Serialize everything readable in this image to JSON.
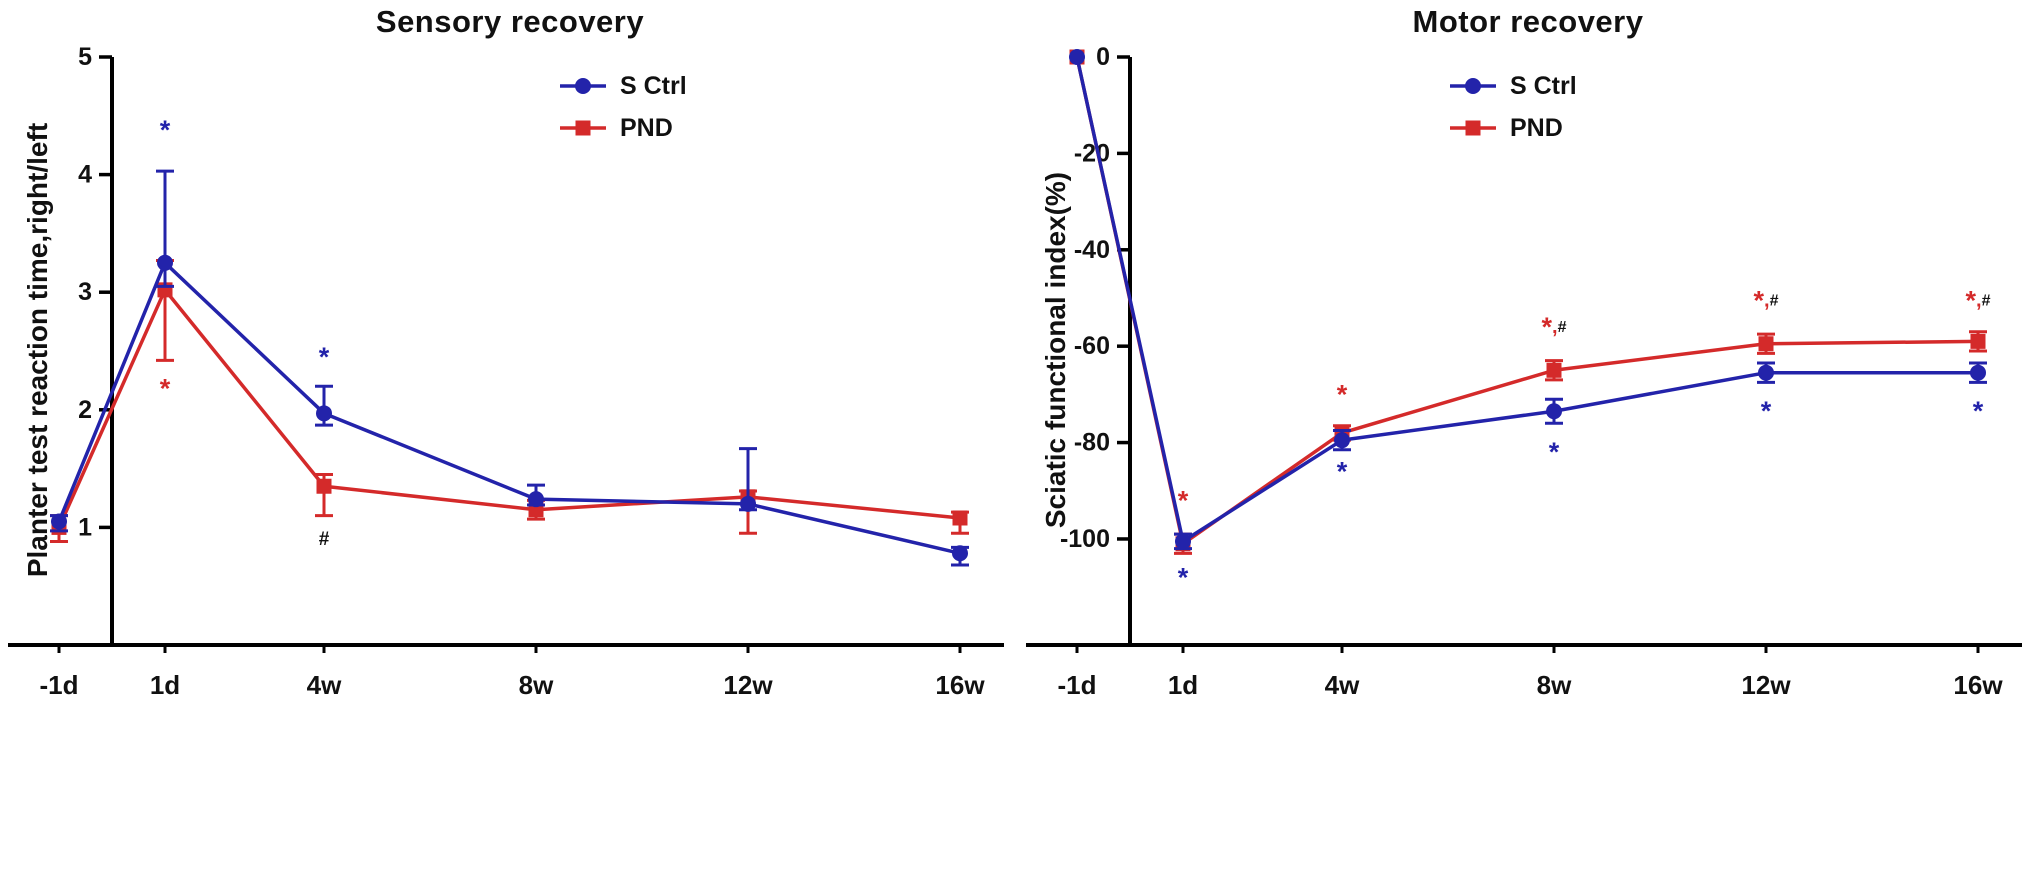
{
  "figure": {
    "background": "#ffffff"
  },
  "colors": {
    "blue": "#2323aa",
    "red": "#d42a2a",
    "black": "#111111",
    "axis": "#000000"
  },
  "chart_data": [
    {
      "type": "line",
      "title": "Sensory recovery",
      "ylabel": "Planter test reaction time,right/left",
      "xlabel": "",
      "x": [
        -1,
        1,
        4,
        8,
        12,
        16
      ],
      "xtick_labels": [
        "-1d",
        "1d",
        "4w",
        "8w",
        "12w",
        "16w"
      ],
      "yticks": [
        1,
        2,
        3,
        4,
        5
      ],
      "ylim": [
        0,
        5
      ],
      "ymap": [
        0,
        5
      ],
      "grid": false,
      "legend_position": "top-center",
      "legend_pos": {
        "x": 560,
        "y": 86
      },
      "series": [
        {
          "name": "S Ctrl",
          "marker": "circle",
          "color": "blue",
          "values": [
            1.05,
            3.25,
            1.97,
            1.24,
            1.2,
            0.78
          ],
          "err_up": [
            0.05,
            0.78,
            0.23,
            0.12,
            0.47,
            0.05
          ],
          "err_down": [
            0.08,
            0.2,
            0.1,
            0.05,
            0.05,
            0.1
          ]
        },
        {
          "name": "PND",
          "marker": "square",
          "color": "red",
          "values": [
            1.0,
            3.02,
            1.35,
            1.15,
            1.26,
            1.08
          ],
          "err_up": [
            0.1,
            0.25,
            0.1,
            0.08,
            0.05,
            0.05
          ],
          "err_down": [
            0.12,
            0.6,
            0.25,
            0.08,
            0.31,
            0.13
          ]
        }
      ],
      "annotations": [
        {
          "x": 1,
          "y": 4.38,
          "size": 27,
          "parts": [
            {
              "text": "*",
              "color": "blue"
            }
          ]
        },
        {
          "x": 1,
          "y": 2.18,
          "size": 27,
          "parts": [
            {
              "text": "*",
              "color": "red"
            }
          ]
        },
        {
          "x": 4,
          "y": 2.45,
          "size": 27,
          "parts": [
            {
              "text": "*",
              "color": "blue"
            }
          ]
        },
        {
          "x": 4,
          "y": 0.9,
          "size": 19,
          "parts": [
            {
              "text": "#",
              "color": "black"
            }
          ]
        }
      ]
    },
    {
      "type": "line",
      "title": "Motor recovery",
      "ylabel": "Sciatic functional index(%)",
      "xlabel": "",
      "x": [
        -1,
        1,
        4,
        8,
        12,
        16
      ],
      "xtick_labels": [
        "-1d",
        "1d",
        "4w",
        "8w",
        "12w",
        "16w"
      ],
      "yticks": [
        0,
        -20,
        -40,
        -60,
        -80,
        -100
      ],
      "ylim": [
        -100,
        0
      ],
      "ymap": [
        -122,
        0
      ],
      "grid": false,
      "legend_position": "top-center",
      "legend_pos": {
        "x": 432,
        "y": 86
      },
      "series": [
        {
          "name": "S Ctrl",
          "marker": "circle",
          "color": "blue",
          "values": [
            0,
            -100.5,
            -79.5,
            -73.5,
            -65.5,
            -65.5
          ],
          "err_up": [
            0,
            1.5,
            2,
            2.5,
            2,
            2
          ],
          "err_down": [
            0,
            1.5,
            2,
            2.5,
            2,
            2
          ]
        },
        {
          "name": "PND",
          "marker": "square",
          "color": "red",
          "values": [
            0,
            -101,
            -78,
            -65,
            -59.5,
            -59
          ],
          "err_up": [
            0,
            2,
            1.5,
            2,
            2,
            2
          ],
          "err_down": [
            0,
            2,
            1.5,
            2,
            2,
            2
          ]
        }
      ],
      "annotations": [
        {
          "x": 1,
          "y": -92,
          "size": 27,
          "parts": [
            {
              "text": "*",
              "color": "red"
            }
          ]
        },
        {
          "x": 1,
          "y": -108,
          "size": 27,
          "parts": [
            {
              "text": "*",
              "color": "blue"
            }
          ]
        },
        {
          "x": 4,
          "y": -70,
          "size": 27,
          "parts": [
            {
              "text": "*",
              "color": "red"
            }
          ]
        },
        {
          "x": 4,
          "y": -86,
          "size": 27,
          "parts": [
            {
              "text": "*",
              "color": "blue"
            }
          ]
        },
        {
          "x": 8,
          "y": -56,
          "size": 27,
          "parts": [
            {
              "text": "*",
              "color": "red"
            },
            {
              "text": ",",
              "color": "red",
              "size": 20
            },
            {
              "text": "#",
              "color": "black",
              "size": 16
            }
          ]
        },
        {
          "x": 8,
          "y": -82,
          "size": 27,
          "parts": [
            {
              "text": "*",
              "color": "blue"
            }
          ]
        },
        {
          "x": 12,
          "y": -50.5,
          "size": 27,
          "parts": [
            {
              "text": "*",
              "color": "red"
            },
            {
              "text": ",",
              "color": "red",
              "size": 20
            },
            {
              "text": "#",
              "color": "black",
              "size": 16
            }
          ]
        },
        {
          "x": 12,
          "y": -73.5,
          "size": 27,
          "parts": [
            {
              "text": "*",
              "color": "blue"
            }
          ]
        },
        {
          "x": 16,
          "y": -50.5,
          "size": 27,
          "parts": [
            {
              "text": "*",
              "color": "red"
            },
            {
              "text": ",",
              "color": "red",
              "size": 20
            },
            {
              "text": "#",
              "color": "black",
              "size": 16
            }
          ]
        },
        {
          "x": 16,
          "y": -73.5,
          "size": 27,
          "parts": [
            {
              "text": "*",
              "color": "blue"
            }
          ]
        }
      ]
    }
  ]
}
